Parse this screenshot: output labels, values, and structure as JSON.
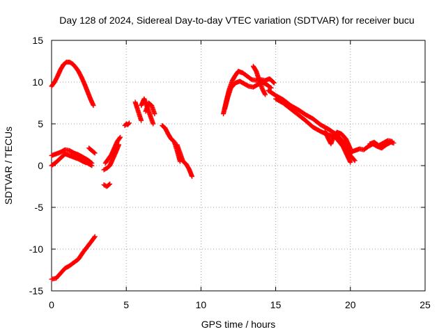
{
  "chart_data": {
    "type": "scatter",
    "title": "Day 128 of 2024, Sidereal Day-to-day VTEC variation (SDTVAR) for receiver bucu",
    "xlabel": "GPS time / hours",
    "ylabel": "SDTVAR / TECUs",
    "xlim": [
      0,
      25
    ],
    "ylim": [
      -15,
      15
    ],
    "xticks": [
      "0",
      "5",
      "10",
      "15",
      "20",
      "25"
    ],
    "yticks": [
      "-15",
      "-10",
      "-5",
      "0",
      "5",
      "10",
      "15"
    ],
    "grid": true,
    "marker": "+",
    "series": [
      {
        "name": "SDTVAR",
        "color": "#ff0000",
        "segments": [
          {
            "x": [
              0.0,
              0.2,
              0.4,
              0.6,
              0.8,
              1.0,
              1.2,
              1.4,
              1.6,
              1.8,
              2.0,
              2.2,
              2.4,
              2.6,
              2.8
            ],
            "y": [
              9.5,
              10.0,
              10.7,
              11.5,
              12.1,
              12.4,
              12.4,
              12.2,
              11.8,
              11.3,
              10.6,
              9.8,
              8.9,
              8.0,
              7.2
            ]
          },
          {
            "x": [
              0.0,
              0.3,
              0.6,
              0.9,
              1.2,
              1.5,
              1.8,
              2.1,
              2.4,
              2.7
            ],
            "y": [
              1.2,
              1.4,
              1.6,
              1.9,
              1.8,
              1.5,
              1.3,
              1.0,
              0.7,
              0.3
            ]
          },
          {
            "x": [
              0.0,
              0.3,
              0.6,
              0.9,
              1.2,
              1.5,
              1.8,
              2.1,
              2.4,
              2.7
            ],
            "y": [
              0.0,
              0.4,
              0.9,
              1.4,
              1.2,
              1.0,
              0.8,
              0.5,
              0.3,
              0.0
            ]
          },
          {
            "x": [
              2.5,
              2.7,
              2.9
            ],
            "y": [
              2.1,
              1.8,
              1.5
            ]
          },
          {
            "x": [
              0.0,
              0.3,
              0.6,
              0.9,
              1.2,
              1.5,
              1.8,
              2.1,
              2.4,
              2.7,
              2.9
            ],
            "y": [
              -13.6,
              -13.5,
              -12.9,
              -12.3,
              -12.0,
              -11.6,
              -11.2,
              -10.4,
              -9.7,
              -9.0,
              -8.5
            ]
          },
          {
            "x": [
              3.5,
              3.7,
              3.9
            ],
            "y": [
              -2.3,
              -2.5,
              -2.2
            ]
          },
          {
            "x": [
              3.5,
              3.7,
              3.9,
              4.1,
              4.3,
              4.5
            ],
            "y": [
              -0.5,
              -0.3,
              0.0,
              0.8,
              1.6,
              2.5
            ]
          },
          {
            "x": [
              3.6,
              3.8,
              4.0,
              4.2,
              4.4,
              4.6
            ],
            "y": [
              0.3,
              0.8,
              1.3,
              2.1,
              2.9,
              3.4
            ]
          },
          {
            "x": [
              4.9,
              5.0,
              5.1,
              5.2
            ],
            "y": [
              4.8,
              5.0,
              4.9,
              5.1
            ]
          },
          {
            "x": [
              5.6,
              5.8,
              6.0
            ],
            "y": [
              7.6,
              6.5,
              5.4
            ]
          },
          {
            "x": [
              6.0,
              6.2,
              6.4,
              6.6,
              6.8
            ],
            "y": [
              7.2,
              8.0,
              7.0,
              6.0,
              5.0
            ]
          },
          {
            "x": [
              6.3,
              6.5,
              6.7,
              6.9
            ],
            "y": [
              6.5,
              7.5,
              7.2,
              6.2
            ]
          },
          {
            "x": [
              7.4,
              7.6,
              7.8,
              8.0,
              8.2,
              8.4,
              8.6
            ],
            "y": [
              4.8,
              4.5,
              3.8,
              3.2,
              2.9,
              1.8,
              0.5
            ]
          },
          {
            "x": [
              8.4,
              8.6,
              8.8,
              9.0,
              9.2,
              9.4
            ],
            "y": [
              2.5,
              1.5,
              0.5,
              0.2,
              -0.4,
              -1.3
            ]
          },
          {
            "x": [
              11.5,
              11.7,
              11.9,
              12.1,
              12.3,
              12.5,
              12.8,
              13.1,
              13.4,
              13.7,
              14.0,
              14.3,
              14.6,
              14.9
            ],
            "y": [
              6.2,
              7.8,
              9.2,
              10.2,
              10.8,
              11.3,
              11.1,
              10.7,
              10.3,
              10.2,
              10.3,
              10.2,
              10.4,
              9.9
            ]
          },
          {
            "x": [
              11.6,
              11.8,
              12.0,
              12.3,
              12.6,
              12.9,
              13.2,
              13.5,
              13.8,
              14.1,
              14.4,
              14.7
            ],
            "y": [
              6.8,
              8.2,
              9.3,
              9.9,
              10.1,
              9.8,
              9.5,
              9.4,
              9.7,
              10.0,
              9.7,
              9.3
            ]
          },
          {
            "x": [
              13.5,
              13.7,
              13.9,
              14.1,
              14.3
            ],
            "y": [
              11.9,
              11.3,
              10.2,
              9.2,
              8.5
            ]
          },
          {
            "x": [
              14.5,
              15.0,
              15.5,
              16.0,
              16.5,
              17.0,
              17.5,
              18.0,
              18.5,
              19.0,
              19.5,
              20.0,
              20.3
            ],
            "y": [
              9.0,
              8.4,
              7.9,
              7.2,
              6.7,
              6.1,
              5.6,
              4.9,
              4.4,
              3.8,
              2.9,
              1.2,
              0.6
            ]
          },
          {
            "x": [
              15.0,
              15.5,
              16.0,
              16.5,
              17.0,
              17.5,
              18.0,
              18.5,
              19.0,
              19.5,
              20.0
            ],
            "y": [
              8.0,
              7.5,
              6.8,
              6.1,
              5.4,
              4.6,
              4.1,
              3.7,
              3.4,
              2.3,
              0.4
            ]
          },
          {
            "x": [
              18.3,
              18.5,
              18.7,
              18.9,
              19.1,
              19.4,
              19.7,
              20.0
            ],
            "y": [
              4.1,
              3.3,
              2.6,
              3.6,
              4.0,
              3.8,
              3.2,
              2.0
            ]
          },
          {
            "x": [
              20.0,
              20.3,
              20.6,
              20.9,
              21.2,
              21.5,
              21.8,
              22.1,
              22.4,
              22.7,
              22.9
            ],
            "y": [
              1.6,
              1.8,
              2.0,
              1.9,
              2.3,
              2.6,
              2.3,
              2.1,
              2.5,
              2.8,
              2.7
            ]
          },
          {
            "x": [
              21.3,
              21.6,
              21.9,
              22.2,
              22.5,
              22.8
            ],
            "y": [
              2.6,
              2.8,
              2.4,
              2.7,
              3.0,
              2.9
            ]
          }
        ]
      }
    ]
  }
}
